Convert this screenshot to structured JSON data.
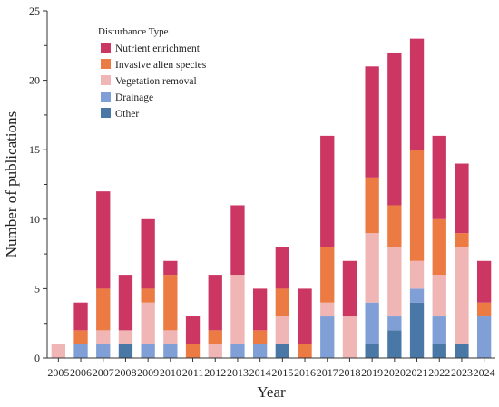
{
  "chart_data": {
    "type": "bar",
    "stacked": true,
    "title": "",
    "xlabel": "Year",
    "ylabel": "Number of publications",
    "ylim": [
      0,
      25
    ],
    "yticks": [
      0,
      5,
      10,
      15,
      20,
      25
    ],
    "grid": false,
    "legend": {
      "title": "Disturbance Type",
      "position": "top-left"
    },
    "categories": [
      "2005",
      "2006",
      "2007",
      "2008",
      "2009",
      "2010",
      "2011",
      "2012",
      "2013",
      "2014",
      "2015",
      "2016",
      "2017",
      "2018",
      "2019",
      "2020",
      "2021",
      "2022",
      "2023",
      "2024"
    ],
    "series": [
      {
        "name": "Other",
        "color": "#4a78a6",
        "values": [
          0,
          0,
          0,
          1,
          0,
          0,
          0,
          0,
          0,
          0,
          1,
          0,
          0,
          0,
          1,
          2,
          4,
          1,
          1,
          0
        ]
      },
      {
        "name": "Drainage",
        "color": "#7f9fd6",
        "values": [
          0,
          1,
          1,
          0,
          1,
          1,
          0,
          0,
          1,
          1,
          0,
          0,
          3,
          0,
          3,
          1,
          1,
          2,
          0,
          3
        ]
      },
      {
        "name": "Vegetation removal",
        "color": "#f0b5b5",
        "values": [
          1,
          0,
          1,
          1,
          3,
          1,
          0,
          1,
          5,
          0,
          2,
          0,
          1,
          3,
          5,
          5,
          2,
          3,
          7,
          0
        ]
      },
      {
        "name": "Invasive alien species",
        "color": "#ec7a43",
        "values": [
          0,
          1,
          3,
          0,
          1,
          4,
          1,
          1,
          0,
          1,
          2,
          1,
          4,
          0,
          4,
          3,
          8,
          4,
          1,
          1
        ]
      },
      {
        "name": "Nutrient enrichment",
        "color": "#cc3663",
        "values": [
          0,
          2,
          7,
          4,
          5,
          1,
          2,
          4,
          5,
          3,
          3,
          4,
          8,
          4,
          8,
          11,
          8,
          6,
          5,
          3
        ]
      }
    ],
    "legend_order": [
      "Nutrient enrichment",
      "Invasive alien species",
      "Vegetation removal",
      "Drainage",
      "Other"
    ]
  }
}
